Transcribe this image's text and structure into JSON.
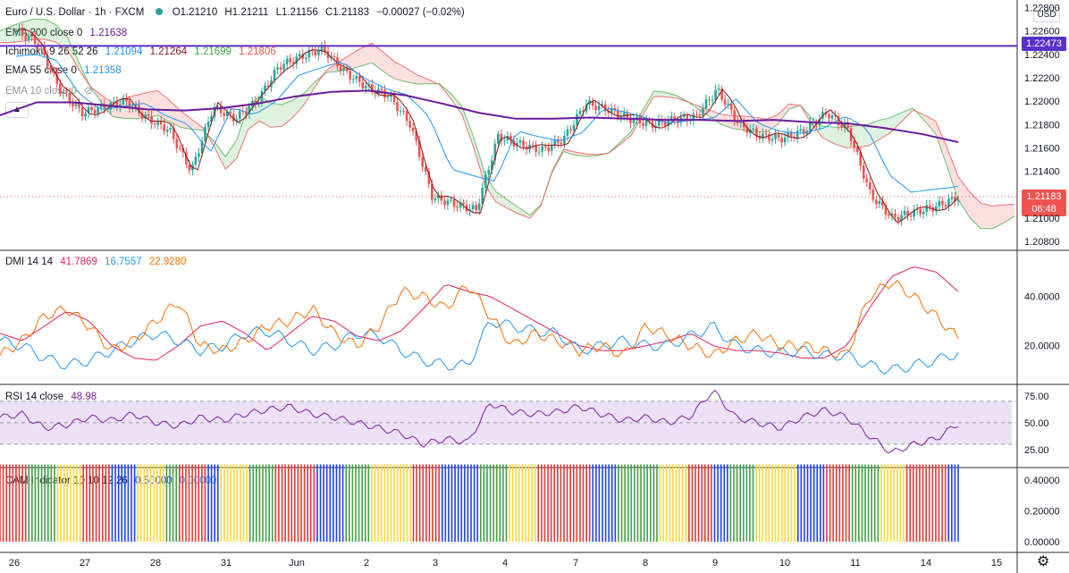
{
  "header": {
    "symbol": "Euro / U.S. Dollar · 1h · FXCM",
    "o": "O1.21210",
    "h": "H1.21211",
    "l": "L1.21156",
    "c": "C1.21183",
    "chg": "−0.00027 (−0.02%)"
  },
  "currency_badge": "USD",
  "indicators": {
    "ema200": {
      "label": "EMA 200 close 0",
      "value": "1.21638",
      "color": "#6a1b9a"
    },
    "ichimoku": {
      "label": "Ichimoku 9 26 52 26",
      "v1": "1.21094",
      "v2": "1.21264",
      "v3": "1.21699",
      "v4": "1.21806"
    },
    "ema55": {
      "label": "EMA 55 close 0",
      "value": "1.21358",
      "color": "#2196f3"
    },
    "ema10": {
      "label": "EMA 10 close 0"
    },
    "dmi": {
      "label": "DMI 14 14",
      "plus": "41.7869",
      "minus": "16.7557",
      "adx": "22.9280"
    },
    "rsi": {
      "label": "RSI 14 close",
      "value": "48.98"
    },
    "cam": {
      "label": "CAM Indicator 10 10 12 26",
      "v1": "0.50000",
      "v2": "0.00000"
    }
  },
  "price_axis": {
    "ticks": [
      "1.22800",
      "1.22600",
      "1.22400",
      "1.22200",
      "1.22000",
      "1.21800",
      "1.21600",
      "1.21400",
      "1.21000",
      "1.20800"
    ],
    "hline_label": "1.22473",
    "last_price": "1.21183",
    "countdown": "06:48"
  },
  "dmi_axis": {
    "ticks": [
      "40.0000",
      "20.0000"
    ]
  },
  "rsi_axis": {
    "ticks": [
      "75.00",
      "50.00",
      "25.00"
    ]
  },
  "cam_axis": {
    "ticks": [
      "0.40000",
      "0.20000",
      "0.00000"
    ]
  },
  "time_axis": {
    "labels": [
      "26",
      "27",
      "28",
      "31",
      "Jun",
      "2",
      "3",
      "4",
      "7",
      "8",
      "9",
      "10",
      "11",
      "14",
      "15"
    ]
  },
  "colors": {
    "up": "#26a69a",
    "down": "#ef5350",
    "ema200": "#6a1b9a",
    "ema55": "#2196f3",
    "tenkan": "#8b1a1a",
    "kijun": "#8b1a1a",
    "cloud_up": "#4caf50",
    "cloud_down": "#ef5350",
    "dmi_plus": "#e91e63",
    "dmi_minus": "#2196f3",
    "adx": "#ff6d00",
    "rsi": "#7b1fa2",
    "cam_colors": [
      "#e53935",
      "#43a047",
      "#fdd835",
      "#1e40ff"
    ]
  },
  "chart_data": [
    {
      "type": "line",
      "title": "Euro / U.S. Dollar · 1h · FXCM",
      "ylim": [
        1.2074,
        1.2285
      ],
      "x_labels": [
        "26",
        "27",
        "28",
        "31",
        "Jun",
        "2",
        "3",
        "4",
        "7",
        "8",
        "9",
        "10",
        "11",
        "14",
        "15"
      ],
      "series": [
        {
          "name": "EMA 200 close 0",
          "values": [
            1.2188,
            1.2199,
            1.2199,
            1.2196,
            1.2193,
            1.2192,
            1.2194,
            1.2198,
            1.2204,
            1.2208,
            1.2209,
            1.2205,
            1.2198,
            1.219,
            1.2185,
            1.2185,
            1.2186,
            1.2185,
            1.2184,
            1.2184,
            1.2183,
            1.2184,
            1.2182,
            1.2181,
            1.2177,
            1.2172,
            1.2165
          ]
        },
        {
          "name": "Price",
          "values": [
            1.226,
            1.225,
            1.221,
            1.219,
            1.2195,
            1.22,
            1.2185,
            1.2175,
            1.214,
            1.2195,
            1.2185,
            1.22,
            1.223,
            1.2238,
            1.2245,
            1.2225,
            1.2212,
            1.2205,
            1.218,
            1.2118,
            1.2112,
            1.2107,
            1.217,
            1.2163,
            1.2158,
            1.2168,
            1.2198,
            1.2193,
            1.2185,
            1.218,
            1.2184,
            1.2186,
            1.221,
            1.218,
            1.217,
            1.2168,
            1.2175,
            1.219,
            1.2175,
            1.212,
            1.21,
            1.2105,
            1.211,
            1.2118
          ]
        }
      ],
      "hline": 1.22473,
      "last": 1.21183
    },
    {
      "type": "line",
      "title": "DMI 14 14",
      "ylim": [
        5,
        58
      ],
      "series": [
        {
          "name": "DI+",
          "values": [
            25,
            22,
            28,
            34,
            30,
            20,
            15,
            14,
            20,
            28,
            30,
            25,
            18,
            25,
            32,
            30,
            24,
            22,
            26,
            35,
            45,
            42,
            40,
            35,
            30,
            25,
            20,
            18,
            18,
            20,
            22,
            25,
            20,
            18,
            18,
            17,
            15,
            15,
            20,
            35,
            48,
            52,
            50,
            42
          ]
        },
        {
          "name": "DI-",
          "values": [
            22,
            20,
            15,
            12,
            14,
            18,
            22,
            25,
            22,
            18,
            20,
            25,
            26,
            22,
            18,
            20,
            25,
            24,
            18,
            14,
            12,
            12,
            30,
            28,
            26,
            25,
            18,
            20,
            22,
            20,
            20,
            24,
            28,
            20,
            18,
            17,
            18,
            16,
            16,
            12,
            10,
            12,
            14,
            17
          ]
        },
        {
          "name": "ADX",
          "values": [
            16,
            22,
            32,
            35,
            28,
            18,
            22,
            30,
            38,
            20,
            18,
            22,
            28,
            30,
            35,
            25,
            20,
            28,
            42,
            40,
            35,
            45,
            32,
            20,
            25,
            22,
            18,
            20,
            16,
            28,
            24,
            20,
            16,
            22,
            25,
            20,
            20,
            18,
            16,
            40,
            46,
            40,
            32,
            23
          ]
        }
      ]
    },
    {
      "type": "line",
      "title": "RSI 14 close",
      "ylim": [
        10,
        84
      ],
      "series": [
        {
          "name": "RSI",
          "values": [
            55,
            58,
            45,
            48,
            55,
            52,
            58,
            50,
            47,
            55,
            52,
            58,
            62,
            65,
            58,
            55,
            50,
            45,
            40,
            30,
            35,
            32,
            68,
            60,
            58,
            60,
            65,
            58,
            52,
            55,
            50,
            56,
            80,
            55,
            50,
            45,
            55,
            62,
            55,
            38,
            22,
            30,
            35,
            49
          ]
        }
      ]
    },
    {
      "type": "bar",
      "title": "CAM Indicator 10 10 12 26",
      "ylim": [
        0,
        0.52
      ],
      "values_note": "",
      "bar_value": 0.5,
      "color_index_sequence": [
        0,
        0,
        1,
        1,
        2,
        2,
        0,
        0,
        3,
        3,
        2,
        2,
        1,
        0,
        0,
        3,
        2,
        2,
        1,
        1,
        0,
        0,
        0,
        3,
        3,
        1,
        1,
        2,
        2,
        2,
        0,
        0,
        3,
        3,
        3,
        1,
        1,
        2,
        2,
        0,
        0,
        0,
        0,
        3,
        3,
        1,
        1,
        1,
        2,
        2,
        0,
        0,
        3,
        1,
        1,
        2,
        2,
        2,
        3,
        3,
        0,
        0,
        1,
        1,
        2,
        2,
        0,
        0,
        0,
        3
      ]
    }
  ]
}
